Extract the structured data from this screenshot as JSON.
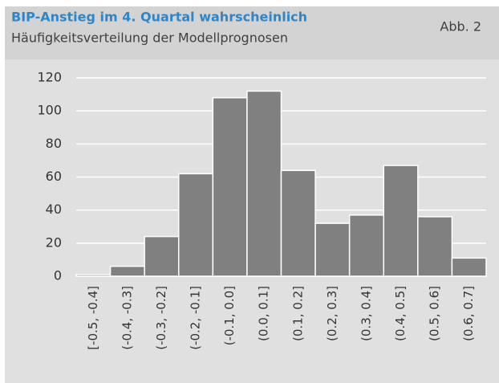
{
  "chart_data": {
    "type": "bar",
    "title": "BIP-Anstieg im 4. Quartal wahrscheinlich",
    "subtitle": "Häufigkeitsverteilung der Modellprognosen",
    "annotation": "Abb. 2",
    "categories": [
      "[-0.5, -0.4]",
      "(-0.4, -0.3]",
      "(-0.3, -0.2]",
      "(-0.2, -0.1]",
      "(-0.1, 0.0]",
      "(0.0, 0.1]",
      "(0.1, 0.2]",
      "(0.2, 0.3]",
      "(0.3, 0.4]",
      "(0.4, 0.5]",
      "(0.5, 0.6]",
      "(0.6, 0.7]"
    ],
    "values": [
      1,
      6,
      24,
      62,
      108,
      112,
      64,
      32,
      37,
      67,
      36,
      11
    ],
    "color": "#808080",
    "ylim": [
      0,
      120
    ],
    "yticks": [
      0,
      20,
      40,
      60,
      80,
      100,
      120
    ],
    "grid": true
  }
}
